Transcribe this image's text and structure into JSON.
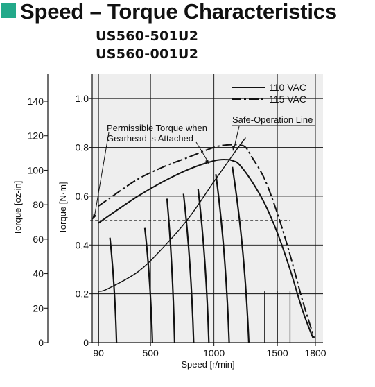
{
  "title": "Speed – Torque Characteristics",
  "models": [
    "US560-501U2",
    "US560-001U2"
  ],
  "colors": {
    "accent": "#23a98a",
    "plot_bg": "#eeeeee",
    "line": "#111111"
  },
  "chart_data": {
    "type": "line",
    "title": "Speed – Torque Characteristics",
    "xlabel": "Speed [r/min]",
    "ylabel": "Torque [N·m]",
    "y2label": "Torque [oz-in]",
    "xlim": [
      40,
      1860
    ],
    "ylim": [
      0,
      1.1
    ],
    "y2lim": [
      0,
      155.7
    ],
    "grid": true,
    "legend_position": "top-right",
    "x_ticks": [
      90,
      500,
      1000,
      1500,
      1800
    ],
    "y_ticks": [
      "0",
      "0.2",
      "0.4",
      "0.6",
      "0.8",
      "1.0"
    ],
    "y2_ticks": [
      "0",
      "20",
      "40",
      "60",
      "80",
      "100",
      "120",
      "140"
    ],
    "series": [
      {
        "name": "110 VAC",
        "style": "solid",
        "x": [
          90,
          200,
          400,
          600,
          800,
          1000,
          1100,
          1150,
          1200,
          1300,
          1400,
          1500,
          1600,
          1700,
          1780
        ],
        "y": [
          0.49,
          0.53,
          0.6,
          0.66,
          0.71,
          0.745,
          0.75,
          0.745,
          0.73,
          0.66,
          0.57,
          0.45,
          0.3,
          0.13,
          0.02
        ]
      },
      {
        "name": "115 VAC",
        "style": "dash-dot",
        "x": [
          90,
          200,
          400,
          600,
          800,
          1000,
          1100,
          1200,
          1250,
          1300,
          1400,
          1500,
          1600,
          1700,
          1790
        ],
        "y": [
          0.56,
          0.6,
          0.67,
          0.72,
          0.76,
          0.8,
          0.81,
          0.81,
          0.8,
          0.76,
          0.67,
          0.53,
          0.36,
          0.17,
          0.02
        ]
      }
    ],
    "permissible_torque_gearhead": {
      "value": 0.5,
      "x_range": [
        90,
        1600
      ]
    },
    "safe_operation_line": {
      "x": [
        90,
        160,
        400,
        600,
        800,
        1000,
        1150,
        1250
      ],
      "y": [
        0.21,
        0.22,
        0.29,
        0.39,
        0.51,
        0.66,
        0.77,
        0.84
      ]
    },
    "load_lines": [
      {
        "x": [
          180,
          232
        ],
        "y": [
          0.43,
          0.0
        ]
      },
      {
        "x": [
          455,
          515
        ],
        "y": [
          0.47,
          0.0
        ]
      },
      {
        "x": [
          630,
          690
        ],
        "y": [
          0.59,
          0.0
        ]
      },
      {
        "x": [
          760,
          840
        ],
        "y": [
          0.61,
          0.0
        ]
      },
      {
        "x": [
          875,
          960
        ],
        "y": [
          0.63,
          0.0
        ]
      },
      {
        "x": [
          1015,
          1120
        ],
        "y": [
          0.69,
          0.0
        ]
      },
      {
        "x": [
          1145,
          1275
        ],
        "y": [
          0.72,
          0.0
        ]
      }
    ],
    "verticals": [
      90,
      1400,
      1500,
      1600
    ],
    "annotations": [
      {
        "text": "Permissible Torque when",
        "line": 1
      },
      {
        "text": "Gearhead is Attached",
        "line": 2
      },
      {
        "text": "Safe-Operation Line",
        "line": 1
      }
    ]
  }
}
